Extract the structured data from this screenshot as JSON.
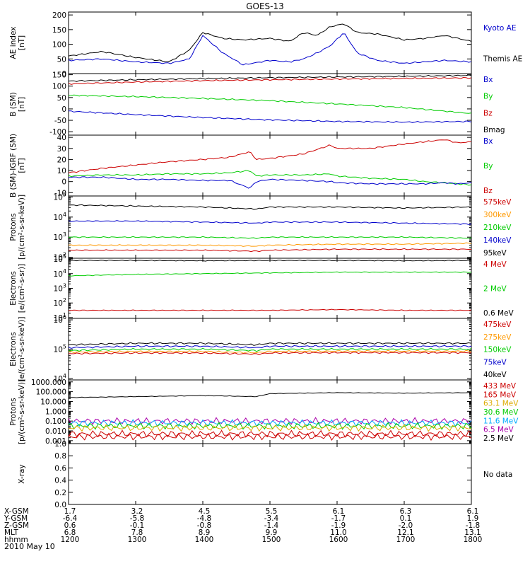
{
  "title": "GOES-13",
  "date": "2010 May 10",
  "time_labels": [
    "1200",
    "1300",
    "1400",
    "1500",
    "1600",
    "1700",
    "1800"
  ],
  "ephemeris": [
    {
      "label": "X-GSM",
      "values": [
        "1.7",
        "3.2",
        "4.5",
        "5.5",
        "6.1",
        "6.3",
        "6.1"
      ]
    },
    {
      "label": "Y-GSM",
      "values": [
        "-6.4",
        "-5.8",
        "-4.8",
        "-3.4",
        "-1.7",
        "0.1",
        "1.9"
      ]
    },
    {
      "label": "Z-GSM",
      "values": [
        "0.6",
        "-0.1",
        "-0.8",
        "-1.4",
        "-1.9",
        "-2.0",
        "-1.8"
      ]
    },
    {
      "label": "MLT",
      "values": [
        "6.8",
        "7.8",
        "8.9",
        "9.9",
        "11.0",
        "12.1",
        "13.1"
      ]
    },
    {
      "label": "hhmm",
      "values": [
        "1200",
        "1300",
        "1400",
        "1500",
        "1600",
        "1700",
        "1800"
      ]
    }
  ],
  "colors": {
    "black": "#000000",
    "blue": "#0000cc",
    "green": "#00cc00",
    "red": "#cc0000",
    "orange": "#ff9900",
    "gold": "#ddaa00",
    "cyan": "#00aaff",
    "purple": "#aa00aa"
  },
  "chart_data": [
    {
      "type": "line",
      "ylabel": "AE index\n[nT]",
      "yticks": [
        "200",
        "150",
        "100",
        "50",
        "0"
      ],
      "ylim": [
        0,
        210
      ],
      "scale": "linear",
      "legend": [
        {
          "label": "Kyoto AE",
          "color": "#0000cc"
        },
        {
          "label": "Themis AE",
          "color": "#000000"
        }
      ],
      "x": [
        12.0,
        12.5,
        13.0,
        13.5,
        13.8,
        14.0,
        14.3,
        14.6,
        15.0,
        15.3,
        15.5,
        15.7,
        15.9,
        16.1,
        16.3,
        16.6,
        17.0,
        17.3,
        17.6,
        18.0
      ],
      "series": [
        {
          "name": "Themis AE",
          "color": "#000000",
          "values": [
            60,
            75,
            55,
            40,
            80,
            140,
            120,
            115,
            120,
            110,
            140,
            130,
            160,
            170,
            140,
            135,
            115,
            120,
            130,
            110
          ]
        },
        {
          "name": "Kyoto AE",
          "color": "#0000cc",
          "values": [
            45,
            50,
            40,
            35,
            50,
            130,
            70,
            30,
            45,
            40,
            50,
            70,
            95,
            140,
            70,
            45,
            35,
            40,
            45,
            40
          ]
        }
      ]
    },
    {
      "type": "line",
      "ylabel": "B (SM)\n[nT]",
      "yticks": [
        "150",
        "100",
        "50",
        "0",
        "-50",
        "-100"
      ],
      "ylim": [
        -115,
        155
      ],
      "scale": "linear",
      "legend": [
        {
          "label": "Bx",
          "color": "#0000cc"
        },
        {
          "label": "By",
          "color": "#00cc00"
        },
        {
          "label": "Bz",
          "color": "#cc0000"
        },
        {
          "label": "Bmag",
          "color": "#000000"
        }
      ],
      "x": [
        12,
        13,
        14,
        15,
        16,
        17,
        18
      ],
      "series": [
        {
          "name": "Bmag",
          "color": "#000000",
          "values": [
            122,
            128,
            133,
            137,
            140,
            143,
            147
          ]
        },
        {
          "name": "Bz",
          "color": "#cc0000",
          "values": [
            110,
            118,
            124,
            128,
            131,
            134,
            136
          ]
        },
        {
          "name": "By",
          "color": "#00cc00",
          "values": [
            60,
            54,
            46,
            36,
            22,
            6,
            -20
          ]
        },
        {
          "name": "Bx",
          "color": "#0000cc",
          "values": [
            -10,
            -25,
            -38,
            -48,
            -55,
            -58,
            -55
          ]
        }
      ]
    },
    {
      "type": "line",
      "ylabel": "B (SM)-IGRF (SM)\n[nT]",
      "yticks": [
        "40",
        "30",
        "20",
        "10",
        "0",
        "-10"
      ],
      "ylim": [
        -13,
        42
      ],
      "scale": "linear",
      "legend": [
        {
          "label": "Bx",
          "color": "#0000cc"
        },
        {
          "label": "By",
          "color": "#00cc00"
        },
        {
          "label": "Bz",
          "color": "#cc0000"
        }
      ],
      "x": [
        12.0,
        12.5,
        13.0,
        13.5,
        14.0,
        14.4,
        14.7,
        14.8,
        15.0,
        15.5,
        15.9,
        16.0,
        16.5,
        17.0,
        17.3,
        17.6,
        17.8,
        18.0
      ],
      "series": [
        {
          "name": "Bz",
          "color": "#cc0000",
          "values": [
            8,
            12,
            15,
            18,
            20,
            22,
            27,
            20,
            21,
            25,
            33,
            30,
            30,
            34,
            36,
            38,
            35,
            36
          ]
        },
        {
          "name": "By",
          "color": "#00cc00",
          "values": [
            5,
            6,
            6,
            7,
            7,
            8,
            10,
            5,
            6,
            6,
            7,
            5,
            3,
            2,
            0,
            -1,
            -2,
            -3
          ]
        },
        {
          "name": "Bx",
          "color": "#0000cc",
          "values": [
            4,
            4,
            2,
            2,
            1,
            1,
            -6,
            0,
            2,
            1,
            0,
            -1,
            -2,
            -2,
            -2,
            -1,
            -2,
            -1
          ]
        }
      ]
    },
    {
      "type": "line",
      "ylabel": "Protons\n[p/(cm²-s-sr-keV)]",
      "yticks_exp": [
        2,
        3,
        4,
        5
      ],
      "ylim": [
        1.95,
        5.05
      ],
      "scale": "log",
      "legend": [
        {
          "label": "575keV",
          "color": "#cc0000"
        },
        {
          "label": "300keV",
          "color": "#ff9900"
        },
        {
          "label": "210keV",
          "color": "#00cc00"
        },
        {
          "label": "140keV",
          "color": "#0000cc"
        },
        {
          "label": "95keV",
          "color": "#000000"
        }
      ],
      "x": [
        12,
        13,
        14,
        14.8,
        15,
        16,
        17,
        18
      ],
      "series": [
        {
          "name": "95keV",
          "color": "#000000",
          "values": [
            4.6,
            4.55,
            4.5,
            4.4,
            4.5,
            4.5,
            4.45,
            4.5
          ]
        },
        {
          "name": "140keV",
          "color": "#0000cc",
          "values": [
            3.8,
            3.8,
            3.75,
            3.7,
            3.75,
            3.75,
            3.7,
            3.65
          ]
        },
        {
          "name": "210keV",
          "color": "#00cc00",
          "values": [
            3.0,
            3.0,
            3.0,
            2.95,
            3.0,
            3.0,
            3.0,
            2.95
          ]
        },
        {
          "name": "300keV",
          "color": "#ff9900",
          "values": [
            2.6,
            2.6,
            2.6,
            2.55,
            2.6,
            2.65,
            2.65,
            2.7
          ]
        },
        {
          "name": "575keV",
          "color": "#cc0000",
          "values": [
            2.35,
            2.35,
            2.35,
            2.3,
            2.35,
            2.4,
            2.4,
            2.4
          ]
        }
      ]
    },
    {
      "type": "line",
      "ylabel": "Electrons\n[e/(cm²-s-sr)]",
      "yticks_exp": [
        1,
        2,
        3,
        4,
        5
      ],
      "ylim": [
        0.95,
        5.05
      ],
      "scale": "log",
      "legend": [
        {
          "label": "4 MeV",
          "color": "#cc0000"
        },
        {
          "label": "2 MeV",
          "color": "#00cc00"
        },
        {
          "label": "0.6 MeV",
          "color": "#000000"
        }
      ],
      "x": [
        12,
        13,
        14,
        15,
        16,
        17,
        18
      ],
      "series": [
        {
          "name": "0.6 MeV",
          "color": "#000000",
          "values": [
            4.9,
            4.9,
            4.88,
            4.9,
            4.9,
            4.88,
            4.9
          ]
        },
        {
          "name": "2 MeV",
          "color": "#00cc00",
          "values": [
            3.85,
            3.95,
            4.0,
            4.05,
            4.1,
            4.1,
            4.1
          ]
        },
        {
          "name": "4 MeV",
          "color": "#cc0000",
          "values": [
            1.5,
            1.5,
            1.5,
            1.5,
            1.55,
            1.5,
            1.5
          ]
        }
      ]
    },
    {
      "type": "line",
      "ylabel": "Electrons\n[e/(cm²-s-sr-keV)]",
      "yticks_exp": [
        4,
        5,
        6
      ],
      "ylim": [
        3.95,
        6.05
      ],
      "scale": "log",
      "legend": [
        {
          "label": "475keV",
          "color": "#cc0000"
        },
        {
          "label": "275keV",
          "color": "#ff9900"
        },
        {
          "label": "150keV",
          "color": "#00cc00"
        },
        {
          "label": "75keV",
          "color": "#0000cc"
        },
        {
          "label": "40keV",
          "color": "#000000"
        }
      ],
      "x": [
        12,
        13,
        14,
        14.8,
        15,
        16,
        17,
        18
      ],
      "series": [
        {
          "name": "40keV",
          "color": "#000000",
          "values": [
            5.15,
            5.2,
            5.2,
            5.15,
            5.2,
            5.2,
            5.2,
            5.2
          ]
        },
        {
          "name": "75keV",
          "color": "#0000cc",
          "values": [
            5.05,
            5.1,
            5.1,
            5.05,
            5.1,
            5.1,
            5.1,
            5.1
          ]
        },
        {
          "name": "150keV",
          "color": "#00cc00",
          "values": [
            4.95,
            5.0,
            5.0,
            4.95,
            5.0,
            5.0,
            5.0,
            5.0
          ]
        },
        {
          "name": "275keV",
          "color": "#ff9900",
          "values": [
            4.9,
            4.92,
            4.92,
            4.88,
            4.92,
            4.93,
            4.93,
            4.93
          ]
        },
        {
          "name": "475keV",
          "color": "#cc0000",
          "values": [
            4.85,
            4.87,
            4.87,
            4.83,
            4.87,
            4.88,
            4.88,
            4.88
          ]
        }
      ]
    },
    {
      "type": "line",
      "ylabel": "Protons\n[p/(cm²-s-sr-keV)]",
      "yticks_text": [
        "1000.000",
        "100.000",
        "10.000",
        "1.000",
        "0.100",
        "0.010",
        "0.001"
      ],
      "yticks_exp": [
        3,
        2,
        1,
        0,
        -1,
        -2,
        -3
      ],
      "ylim": [
        -3.3,
        3.2
      ],
      "scale": "log",
      "legend": [
        {
          "label": "433 MeV",
          "color": "#cc0000"
        },
        {
          "label": "165 MeV",
          "color": "#cc0000"
        },
        {
          "label": "63.1 MeV",
          "color": "#ddaa00"
        },
        {
          "label": "30.6 MeV",
          "color": "#00cc00"
        },
        {
          "label": "11.6 MeV",
          "color": "#00aaff"
        },
        {
          "label": "6.5 MeV",
          "color": "#aa00aa"
        },
        {
          "label": "2.5 MeV",
          "color": "#000000"
        }
      ],
      "x": [
        12,
        13,
        14,
        14.8,
        15,
        16,
        17,
        18
      ],
      "series": [
        {
          "name": "2.5 MeV",
          "color": "#000000",
          "values": [
            1.4,
            1.5,
            1.6,
            1.5,
            1.8,
            1.9,
            1.85,
            1.9
          ]
        },
        {
          "name": "6.5 MeV",
          "color": "#aa00aa",
          "values": [
            -1.0,
            -1.0,
            -1.0,
            -1.0,
            -1.0,
            -1.0,
            -1.0,
            -1.0
          ]
        },
        {
          "name": "11.6 MeV",
          "color": "#00aaff",
          "values": [
            -1.2,
            -1.2,
            -1.2,
            -1.2,
            -1.2,
            -1.2,
            -1.2,
            -1.2
          ]
        },
        {
          "name": "30.6 MeV",
          "color": "#00cc00",
          "values": [
            -1.5,
            -1.5,
            -1.5,
            -1.5,
            -1.5,
            -1.5,
            -1.5,
            -1.5
          ]
        },
        {
          "name": "63.1 MeV",
          "color": "#ddaa00",
          "values": [
            -1.7,
            -1.7,
            -1.7,
            -1.7,
            -1.7,
            -1.7,
            -1.7,
            -1.7
          ]
        },
        {
          "name": "165 MeV",
          "color": "#cc0000",
          "values": [
            -2.3,
            -2.3,
            -2.3,
            -2.3,
            -2.3,
            -2.3,
            -2.3,
            -2.3
          ]
        },
        {
          "name": "433 MeV",
          "color": "#cc0000",
          "values": [
            -2.6,
            -2.6,
            -2.6,
            -2.6,
            -2.6,
            -2.6,
            -2.6,
            -2.6
          ]
        }
      ]
    },
    {
      "type": "line",
      "ylabel": "X-ray",
      "yticks": [
        "1.0",
        "0.8",
        "0.6",
        "0.4",
        "0.2",
        "0.0"
      ],
      "ylim": [
        0,
        1.0
      ],
      "scale": "linear",
      "legend": [],
      "note": "No data",
      "x": [],
      "series": []
    }
  ]
}
